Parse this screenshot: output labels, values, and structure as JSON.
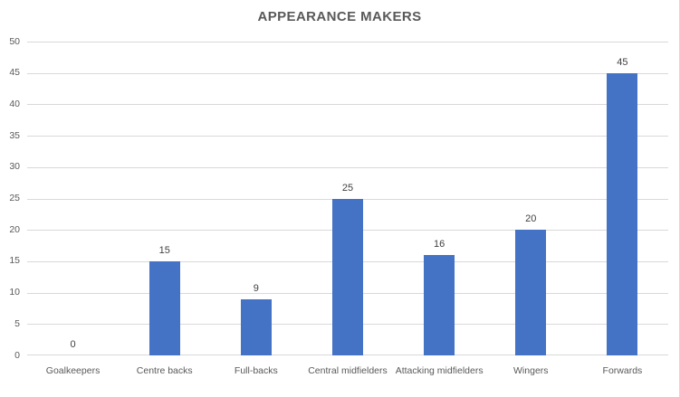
{
  "chart": {
    "title": "APPEARANCE MAKERS"
  },
  "chart_data": {
    "type": "bar",
    "title": "APPEARANCE MAKERS",
    "categories": [
      "Goalkeepers",
      "Centre backs",
      "Full-backs",
      "Central midfielders",
      "Attacking midfielders",
      "Wingers",
      "Forwards"
    ],
    "values": [
      0,
      15,
      9,
      25,
      16,
      20,
      45
    ],
    "data_labels": [
      "0",
      "15",
      "9",
      "25",
      "16",
      "20",
      "45"
    ],
    "xlabel": "",
    "ylabel": "",
    "ylim": [
      0,
      50
    ],
    "ytick_step": 5,
    "ytick_labels": [
      "0",
      "5",
      "10",
      "15",
      "20",
      "25",
      "30",
      "35",
      "40",
      "45",
      "50"
    ],
    "grid": true,
    "legend": "none",
    "colors": {
      "bar": "#4472C4",
      "gridline": "#d9d9d9",
      "title_text": "#595959",
      "axis_text": "#595959",
      "data_label_text": "#404040",
      "background": "#ffffff",
      "chart_border": "#d9d9d9"
    }
  }
}
